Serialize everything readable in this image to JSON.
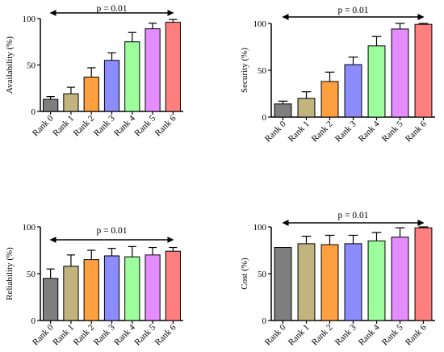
{
  "chart_data": [
    {
      "type": "bar",
      "ylabel": "Availability (%)",
      "categories": [
        "Rank 0",
        "Rank 1",
        "Rank 2",
        "Rank 3",
        "Rank 4",
        "Rank 5",
        "Rank 6"
      ],
      "values": [
        13,
        19,
        37,
        55,
        75,
        89,
        96
      ],
      "errors": [
        3,
        7,
        10,
        8,
        10,
        6,
        3
      ],
      "ylim": [
        0,
        100
      ],
      "yticks": [
        0,
        50,
        100
      ],
      "annotation": "p = 0.01"
    },
    {
      "type": "bar",
      "ylabel": "Security (%)",
      "categories": [
        "Rank 0",
        "Rank 1",
        "Rank 2",
        "Rank 3",
        "Rank 4",
        "Rank 5",
        "Rank 6"
      ],
      "values": [
        14,
        20,
        38,
        56,
        76,
        94,
        99
      ],
      "errors": [
        3,
        7,
        10,
        8,
        10,
        6,
        1
      ],
      "ylim": [
        0,
        100
      ],
      "yticks": [
        0,
        50,
        100
      ],
      "annotation": "p = 0.01"
    },
    {
      "type": "bar",
      "ylabel": "Reliability (%)",
      "categories": [
        "Rank 0",
        "Rank 1",
        "Rank 2",
        "Rank 3",
        "Rank 4",
        "Rank 5",
        "Rank 6"
      ],
      "values": [
        45,
        58,
        65,
        69,
        68,
        70,
        74
      ],
      "errors": [
        10,
        12,
        10,
        8,
        11,
        8,
        4
      ],
      "ylim": [
        0,
        100
      ],
      "yticks": [
        0,
        50,
        100
      ],
      "annotation": "p = 0.01"
    },
    {
      "type": "bar",
      "ylabel": "Cost (%)",
      "categories": [
        "Rank 0",
        "Rank 1",
        "Rank 2",
        "Rank 3",
        "Rank 4",
        "Rank 5",
        "Rank 6"
      ],
      "values": [
        78,
        82,
        81,
        82,
        85,
        89,
        99
      ],
      "errors": [
        0,
        8,
        10,
        9,
        9,
        10,
        1
      ],
      "ylim": [
        0,
        100
      ],
      "yticks": [
        0,
        50,
        100
      ],
      "annotation": "p = 0.01"
    }
  ],
  "colors": [
    "#7f7f7f",
    "#c2b47f",
    "#ffa040",
    "#8c8cff",
    "#9cff9c",
    "#e58cff",
    "#ff7f7f"
  ]
}
